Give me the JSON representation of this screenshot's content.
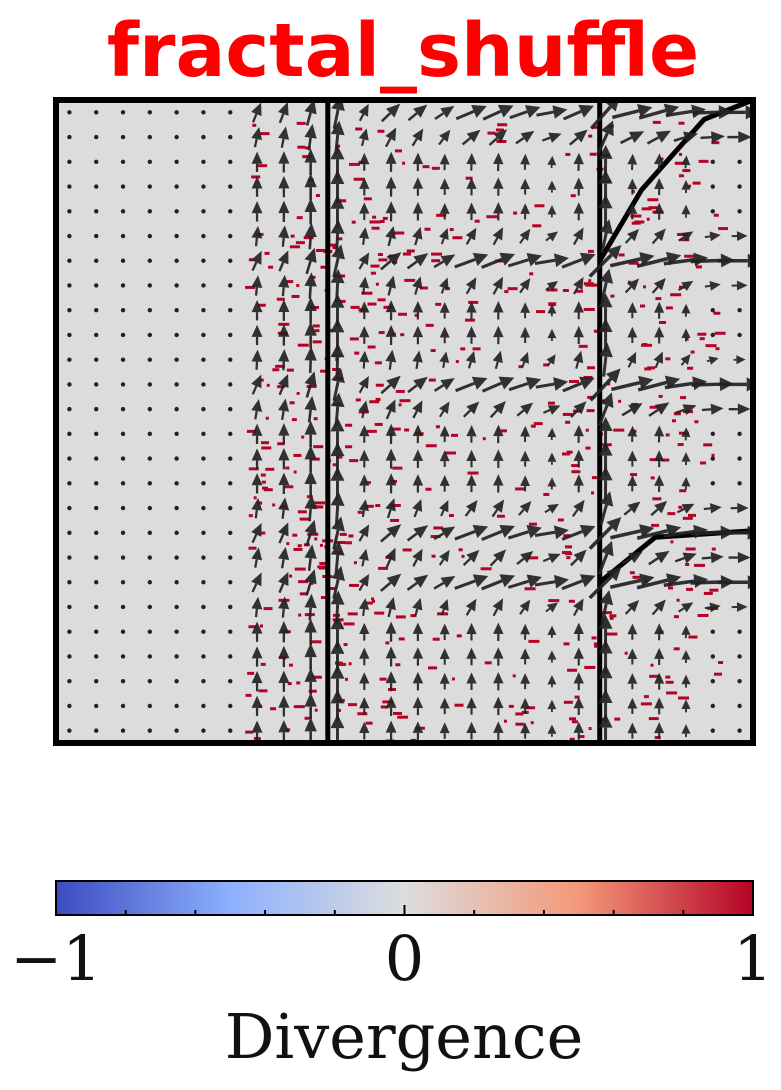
{
  "chart_data": {
    "type": "quiver",
    "title": "fractal_shuffle",
    "title_color": "#ff0000",
    "background_color": "#dcdcdc",
    "xlim": [
      0,
      1
    ],
    "ylim": [
      0,
      1
    ],
    "grid": false,
    "axis_ticks_visible": false,
    "arrow_color": "#222222",
    "divergence_mark_color": "#b40426",
    "streamlines": [
      {
        "id": "vertical-1",
        "points": [
          [
            0.39,
            0.0
          ],
          [
            0.39,
            1.0
          ]
        ]
      },
      {
        "id": "vertical-2",
        "points": [
          [
            0.78,
            0.0
          ],
          [
            0.78,
            1.0
          ]
        ]
      },
      {
        "id": "branch-upper",
        "points": [
          [
            0.78,
            0.75
          ],
          [
            0.84,
            0.86
          ],
          [
            0.93,
            0.97
          ],
          [
            1.0,
            1.0
          ]
        ]
      },
      {
        "id": "branch-lower",
        "points": [
          [
            0.78,
            0.25
          ],
          [
            0.86,
            0.32
          ],
          [
            1.0,
            0.33
          ]
        ]
      }
    ],
    "colorbar": {
      "label": "Divergence",
      "min": -1,
      "max": 1,
      "cmap": "coolwarm",
      "colors": [
        "#3b4cc0",
        "#8db0fe",
        "#dddddd",
        "#f4987a",
        "#b40426"
      ],
      "tick_values": [
        -1,
        0,
        1
      ],
      "tick_labels": [
        "−1",
        "0",
        "1"
      ],
      "orientation": "horizontal"
    }
  }
}
